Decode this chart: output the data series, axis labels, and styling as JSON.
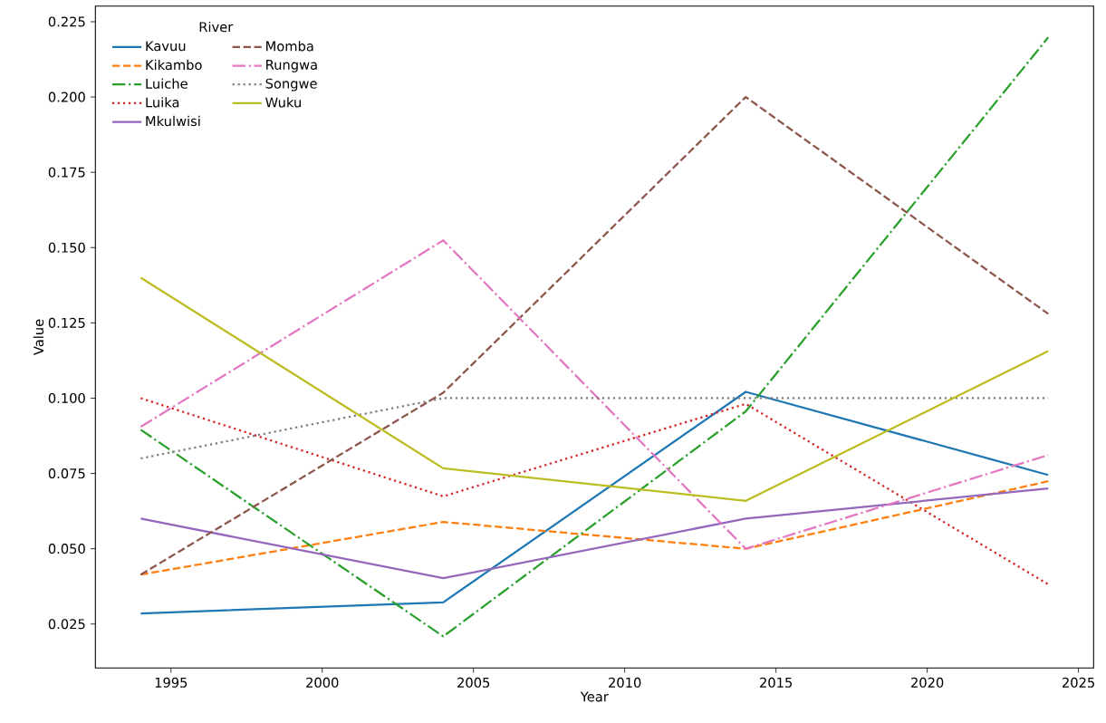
{
  "chart_data": {
    "type": "line",
    "xlabel": "Year",
    "ylabel": "Value",
    "legend_title": "River",
    "legend": "top left",
    "grid": false,
    "x": [
      1994,
      2004,
      2014,
      2024
    ],
    "xlim": [
      1992.5,
      2025.5
    ],
    "xticks": [
      1995,
      2000,
      2005,
      2010,
      2015,
      2020,
      2025
    ],
    "ylim": [
      0.0104,
      0.2302
    ],
    "yticks": [
      {
        "value": 0.025,
        "label": "0.025"
      },
      {
        "value": 0.05,
        "label": "0.050"
      },
      {
        "value": 0.075,
        "label": "0.075"
      },
      {
        "value": 0.1,
        "label": "0.100"
      },
      {
        "value": 0.125,
        "label": "0.125"
      },
      {
        "value": 0.15,
        "label": "0.150"
      },
      {
        "value": 0.175,
        "label": "0.175"
      },
      {
        "value": 0.2,
        "label": "0.200"
      },
      {
        "value": 0.225,
        "label": "0.225"
      }
    ],
    "series": [
      {
        "name": "Kavuu",
        "color": "#1f77b4",
        "line_style": "solid",
        "values": [
          0.0285,
          0.0322,
          0.1021,
          0.0745
        ]
      },
      {
        "name": "Kikambo",
        "color": "#ff7f0e",
        "line_style": "dashed",
        "values": [
          0.0414,
          0.0589,
          0.05,
          0.0724
        ]
      },
      {
        "name": "Luiche",
        "color": "#2ca02c",
        "line_style": "dashdot",
        "values": [
          0.0895,
          0.0209,
          0.0956,
          0.2198
        ]
      },
      {
        "name": "Luika",
        "color": "#d62728",
        "line_style": "dotted",
        "values": [
          0.1,
          0.0674,
          0.0981,
          0.0382
        ]
      },
      {
        "name": "Mkulwisi",
        "color": "#9467bd",
        "line_style": "solid",
        "values": [
          0.06,
          0.0402,
          0.06,
          0.07
        ]
      },
      {
        "name": "Momba",
        "color": "#8c564b",
        "line_style": "dashed",
        "values": [
          0.0414,
          0.1018,
          0.2,
          0.128
        ]
      },
      {
        "name": "Rungwa",
        "color": "#e377c2",
        "line_style": "dashdot",
        "values": [
          0.0905,
          0.1524,
          0.05,
          0.0811
        ]
      },
      {
        "name": "Songwe",
        "color": "#7f7f7f",
        "line_style": "dotted",
        "values": [
          0.08,
          0.1,
          0.1,
          0.1
        ]
      },
      {
        "name": "Wuku",
        "color": "#bcbd22",
        "line_style": "solid",
        "values": [
          0.14,
          0.0767,
          0.0659,
          0.1156
        ]
      }
    ]
  }
}
